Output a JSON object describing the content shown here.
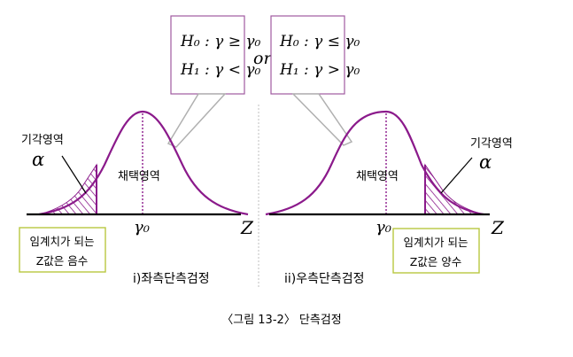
{
  "figure": {
    "caption": "〈그림 13-2〉 단측검정",
    "connector": "or",
    "colors": {
      "curve": "#8b1a8b",
      "box_border": "#a05aa0",
      "callout": "#b0b0b0",
      "axis": "#000000",
      "divider": "#bfbfbf"
    }
  },
  "left_panel": {
    "hypothesis_h0": "H₀ : γ ≥ γ₀",
    "hypothesis_h1": "H₁ : γ < γ₀",
    "rejection_label": "기각영역",
    "alpha": "α",
    "acceptance_label": "채택영역",
    "center_label": "γ₀",
    "critical_note_line1": "임계치가 되는",
    "critical_note_line2": "Z값은 음수",
    "panel_title": "i)좌측단측검정"
  },
  "right_panel": {
    "hypothesis_h0": "H₀ : γ ≤ γ₀",
    "hypothesis_h1": "H₁ : γ > γ₀",
    "rejection_label": "기각영역",
    "alpha": "α",
    "acceptance_label": "채택영역",
    "center_label": "γ₀",
    "axis_label": "Z",
    "critical_note_line1": "임계치가 되는",
    "critical_note_line2": "Z값은 양수",
    "panel_title": "ii)우측단측검정"
  },
  "axis_label_left": "Z"
}
